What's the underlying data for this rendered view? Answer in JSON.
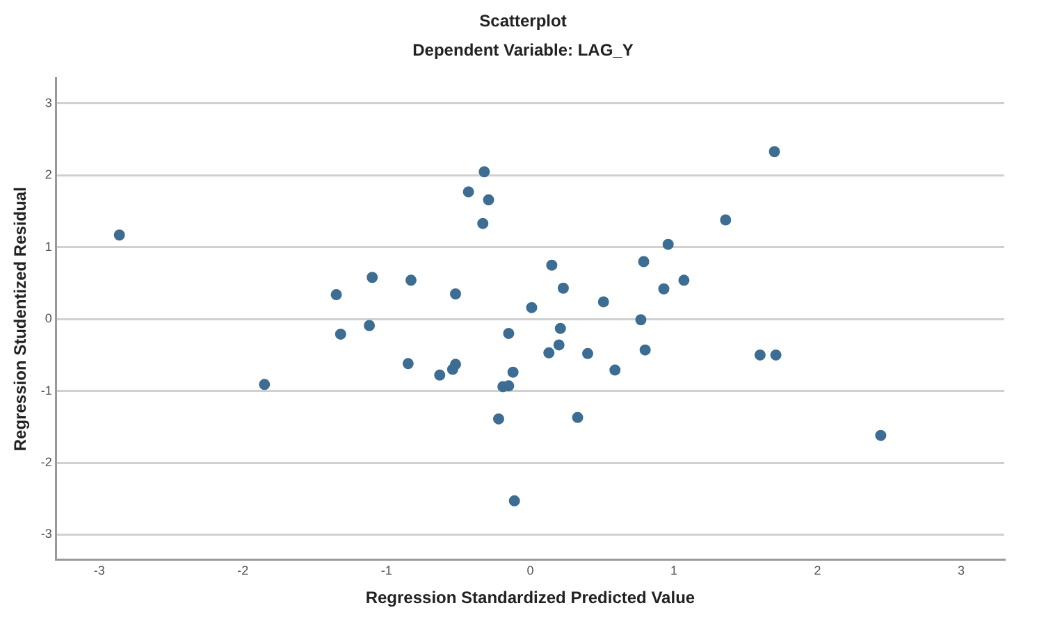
{
  "chart_data": {
    "type": "scatter",
    "title": "Scatterplot",
    "subtitle": "Dependent Variable: LAG_Y",
    "xlabel": "Regression Standardized Predicted Value",
    "ylabel": "Regression Studentized Residual",
    "xlim": [
      -3.3,
      3.3
    ],
    "ylim": [
      -3.35,
      3.35
    ],
    "xticks": [
      -3,
      -2,
      -1,
      0,
      1,
      2,
      3
    ],
    "yticks": [
      -3,
      -2,
      -1,
      0,
      1,
      2,
      3
    ],
    "grid": "y",
    "legend": false,
    "marker": "circle",
    "series": [
      {
        "color": "#3d6d92",
        "x": [
          -2.86,
          -1.85,
          -1.35,
          -1.32,
          -1.1,
          -1.12,
          -0.83,
          -0.85,
          -0.52,
          -0.32,
          -0.43,
          -0.29,
          -0.33,
          1.7,
          1.36,
          0.96,
          0.15,
          0.79,
          1.07,
          0.23,
          0.93,
          0.51,
          0.01,
          0.77,
          -0.15,
          0.21,
          0.2,
          0.13,
          0.4,
          0.8,
          0.59,
          1.6,
          1.71,
          -0.12,
          -0.19,
          -0.15,
          -0.22,
          0.33,
          2.44,
          -0.11,
          -0.63,
          -0.54,
          -0.52
        ],
        "values": [
          1.17,
          -0.91,
          0.34,
          -0.21,
          0.58,
          -0.09,
          0.54,
          -0.62,
          0.35,
          2.05,
          1.77,
          1.66,
          1.33,
          2.33,
          1.38,
          1.04,
          0.75,
          0.8,
          0.54,
          0.43,
          0.42,
          0.24,
          0.16,
          -0.01,
          -0.2,
          -0.13,
          -0.36,
          -0.47,
          -0.48,
          -0.43,
          -0.71,
          -0.5,
          -0.5,
          -0.74,
          -0.94,
          -0.93,
          -1.39,
          -1.37,
          -1.62,
          -2.53,
          -0.78,
          -0.7,
          -0.63
        ]
      }
    ]
  }
}
